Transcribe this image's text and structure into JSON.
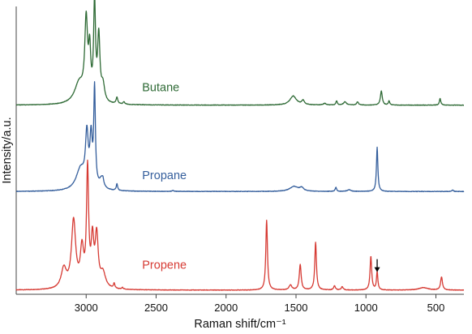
{
  "chart_data": {
    "type": "line",
    "xlabel": "Raman shift/cm⁻¹",
    "ylabel": "Intensity/a.u.",
    "x_axis_reversed": true,
    "xlim": [
      3500,
      300
    ],
    "ylim": [
      0,
      3.5
    ],
    "grid": false,
    "y_ticks_labeled": false,
    "x_ticks": [
      {
        "value": 3000,
        "label": "3000"
      },
      {
        "value": 2500,
        "label": "2500"
      },
      {
        "value": 2000,
        "label": "2000"
      },
      {
        "value": 1500,
        "label": "1500"
      },
      {
        "value": 1000,
        "label": "1000"
      },
      {
        "value": 500,
        "label": "500"
      }
    ],
    "annotations": [
      {
        "type": "arrow",
        "series": "Propene",
        "x": 920,
        "y": 0.22,
        "direction": "down"
      }
    ],
    "series": [
      {
        "name": "Propene",
        "color": "#d63a33",
        "label_at": {
          "x": 2600,
          "y": 0.31
        },
        "baseline": 0.05,
        "peaks": [
          [
            3160,
            0.24,
            22
          ],
          [
            3090,
            0.82,
            18
          ],
          [
            3030,
            0.45,
            14
          ],
          [
            2990,
            1.42,
            9
          ],
          [
            2955,
            0.55,
            11
          ],
          [
            2925,
            0.62,
            13
          ],
          [
            2880,
            0.18,
            22
          ],
          [
            2800,
            0.06,
            6
          ],
          [
            2740,
            0.02,
            6
          ],
          [
            1710,
            0.85,
            7
          ],
          [
            1540,
            0.06,
            12
          ],
          [
            1470,
            0.31,
            8
          ],
          [
            1360,
            0.58,
            7
          ],
          [
            1225,
            0.05,
            8
          ],
          [
            1170,
            0.04,
            8
          ],
          [
            965,
            0.41,
            7
          ],
          [
            920,
            0.22,
            6
          ],
          [
            590,
            0.03,
            40
          ],
          [
            460,
            0.16,
            8
          ]
        ]
      },
      {
        "name": "Propane",
        "color": "#345e9c",
        "label_at": {
          "x": 2600,
          "y": 1.4
        },
        "baseline": 1.25,
        "peaks": [
          [
            3040,
            0.26,
            38
          ],
          [
            2995,
            0.62,
            12
          ],
          [
            2965,
            0.58,
            10
          ],
          [
            2940,
            1.18,
            7
          ],
          [
            2890,
            0.12,
            18
          ],
          [
            2780,
            0.08,
            6
          ],
          [
            2880,
            0.05,
            6
          ],
          [
            2380,
            0.01,
            8
          ],
          [
            1515,
            0.06,
            35
          ],
          [
            1460,
            0.04,
            18
          ],
          [
            1215,
            0.05,
            6
          ],
          [
            1120,
            0.02,
            15
          ],
          [
            920,
            0.54,
            6
          ],
          [
            380,
            0.02,
            6
          ]
        ]
      },
      {
        "name": "Butane",
        "color": "#2e6a35",
        "label_at": {
          "x": 2600,
          "y": 2.47
        },
        "baseline": 2.3,
        "peaks": [
          [
            3050,
            0.25,
            40
          ],
          [
            3000,
            0.95,
            12
          ],
          [
            2975,
            0.55,
            9
          ],
          [
            2940,
            1.18,
            8
          ],
          [
            2910,
            0.78,
            10
          ],
          [
            2880,
            0.2,
            14
          ],
          [
            2780,
            0.08,
            7
          ],
          [
            2730,
            0.03,
            7
          ],
          [
            1520,
            0.11,
            28
          ],
          [
            1450,
            0.05,
            12
          ],
          [
            1295,
            0.02,
            12
          ],
          [
            1210,
            0.05,
            6
          ],
          [
            1150,
            0.04,
            12
          ],
          [
            1060,
            0.04,
            8
          ],
          [
            890,
            0.17,
            8
          ],
          [
            835,
            0.05,
            6
          ],
          [
            470,
            0.08,
            6
          ]
        ]
      }
    ]
  }
}
